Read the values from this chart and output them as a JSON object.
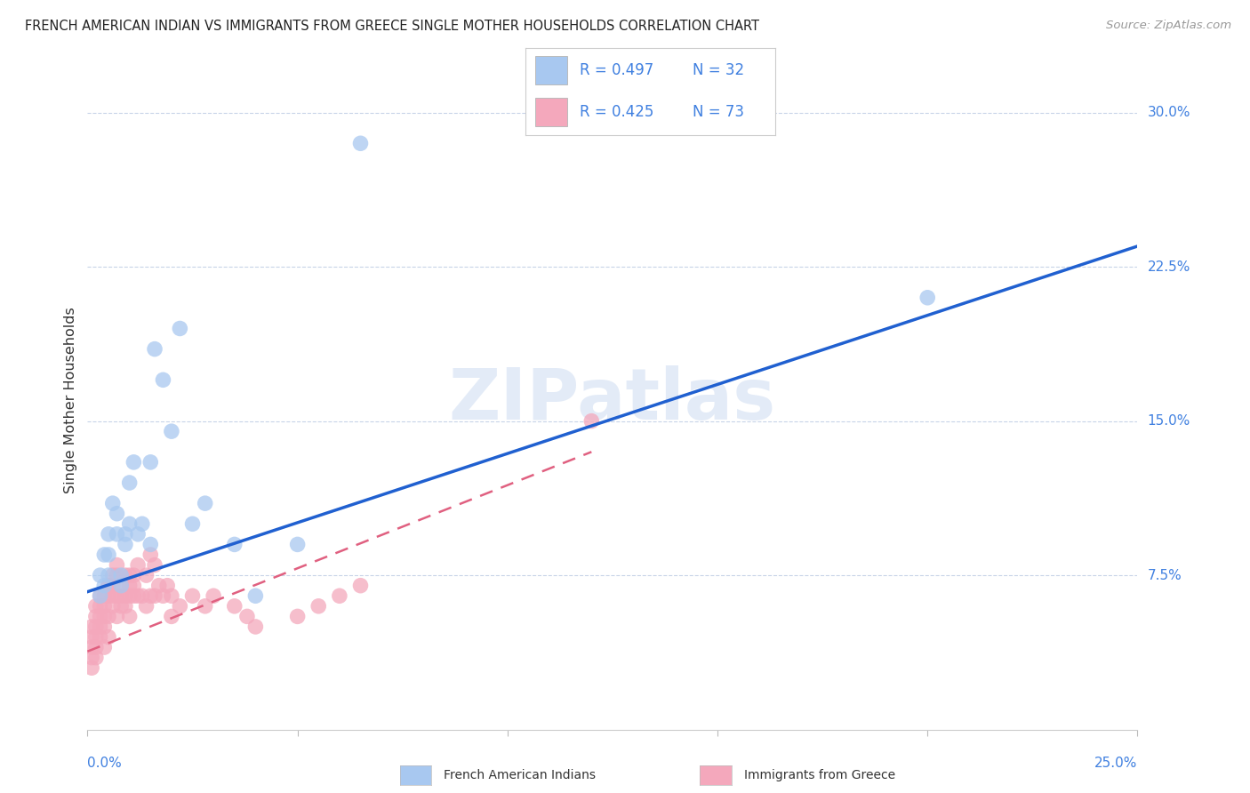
{
  "title": "FRENCH AMERICAN INDIAN VS IMMIGRANTS FROM GREECE SINGLE MOTHER HOUSEHOLDS CORRELATION CHART",
  "source": "Source: ZipAtlas.com",
  "ylabel": "Single Mother Households",
  "xlim": [
    0,
    0.25
  ],
  "ylim": [
    0,
    0.32
  ],
  "xticks_left_label": "0.0%",
  "xticks_right_label": "25.0%",
  "yticks": [
    0.075,
    0.15,
    0.225,
    0.3
  ],
  "ytick_labels": [
    "7.5%",
    "15.0%",
    "22.5%",
    "30.0%"
  ],
  "legend_r1": "R = 0.497",
  "legend_n1": "N = 32",
  "legend_r2": "R = 0.425",
  "legend_n2": "N = 73",
  "blue_color": "#a8c8f0",
  "pink_color": "#f4a8bc",
  "line_blue": "#2060d0",
  "line_pink": "#e06080",
  "legend_text_color": "#4080e0",
  "tick_color": "#4080e0",
  "watermark": "ZIPatlas",
  "blue_x": [
    0.003,
    0.003,
    0.004,
    0.004,
    0.005,
    0.005,
    0.005,
    0.006,
    0.007,
    0.007,
    0.008,
    0.008,
    0.009,
    0.009,
    0.01,
    0.01,
    0.011,
    0.012,
    0.013,
    0.015,
    0.015,
    0.016,
    0.018,
    0.02,
    0.022,
    0.025,
    0.028,
    0.035,
    0.04,
    0.05,
    0.065,
    0.2
  ],
  "blue_y": [
    0.075,
    0.065,
    0.085,
    0.07,
    0.095,
    0.085,
    0.075,
    0.11,
    0.095,
    0.105,
    0.075,
    0.07,
    0.09,
    0.095,
    0.1,
    0.12,
    0.13,
    0.095,
    0.1,
    0.13,
    0.09,
    0.185,
    0.17,
    0.145,
    0.195,
    0.1,
    0.11,
    0.09,
    0.065,
    0.09,
    0.285,
    0.21
  ],
  "pink_x": [
    0.001,
    0.001,
    0.001,
    0.001,
    0.001,
    0.002,
    0.002,
    0.002,
    0.002,
    0.002,
    0.002,
    0.003,
    0.003,
    0.003,
    0.003,
    0.003,
    0.004,
    0.004,
    0.004,
    0.004,
    0.004,
    0.005,
    0.005,
    0.005,
    0.005,
    0.005,
    0.006,
    0.006,
    0.006,
    0.006,
    0.007,
    0.007,
    0.007,
    0.007,
    0.008,
    0.008,
    0.008,
    0.009,
    0.009,
    0.009,
    0.01,
    0.01,
    0.01,
    0.01,
    0.011,
    0.011,
    0.011,
    0.012,
    0.012,
    0.013,
    0.014,
    0.014,
    0.015,
    0.015,
    0.016,
    0.016,
    0.017,
    0.018,
    0.019,
    0.02,
    0.02,
    0.022,
    0.025,
    0.028,
    0.03,
    0.035,
    0.038,
    0.04,
    0.05,
    0.055,
    0.06,
    0.065,
    0.12
  ],
  "pink_y": [
    0.04,
    0.035,
    0.05,
    0.045,
    0.03,
    0.05,
    0.045,
    0.04,
    0.06,
    0.055,
    0.035,
    0.06,
    0.055,
    0.065,
    0.05,
    0.045,
    0.06,
    0.055,
    0.065,
    0.05,
    0.04,
    0.07,
    0.065,
    0.055,
    0.07,
    0.045,
    0.065,
    0.075,
    0.06,
    0.07,
    0.075,
    0.065,
    0.055,
    0.08,
    0.065,
    0.06,
    0.07,
    0.065,
    0.075,
    0.06,
    0.075,
    0.065,
    0.07,
    0.055,
    0.075,
    0.065,
    0.07,
    0.065,
    0.08,
    0.065,
    0.075,
    0.06,
    0.085,
    0.065,
    0.08,
    0.065,
    0.07,
    0.065,
    0.07,
    0.065,
    0.055,
    0.06,
    0.065,
    0.06,
    0.065,
    0.06,
    0.055,
    0.05,
    0.055,
    0.06,
    0.065,
    0.07,
    0.15
  ],
  "blue_line_x0": 0.0,
  "blue_line_x1": 0.25,
  "blue_line_y0": 0.067,
  "blue_line_y1": 0.235,
  "pink_line_x0": 0.0,
  "pink_line_x1": 0.12,
  "pink_line_y0": 0.038,
  "pink_line_y1": 0.135
}
